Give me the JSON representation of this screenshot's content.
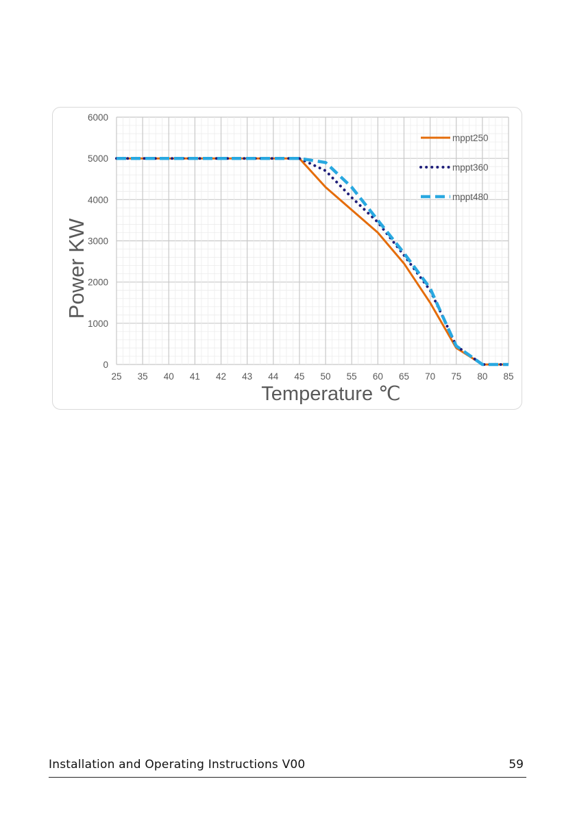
{
  "chart_data": {
    "type": "line",
    "xlabel": "Temperature ℃",
    "ylabel": "Power KW",
    "categories": [
      "25",
      "35",
      "40",
      "41",
      "42",
      "43",
      "44",
      "45",
      "50",
      "55",
      "60",
      "65",
      "70",
      "75",
      "80",
      "85"
    ],
    "y_ticks": [
      "0",
      "1000",
      "2000",
      "3000",
      "4000",
      "5000",
      "6000"
    ],
    "ylim": [
      0,
      6000
    ],
    "grid": true,
    "legend_position": "top-right",
    "series": [
      {
        "name": "mppt250",
        "color": "#e46c0a",
        "style": "solid",
        "points": [
          [
            25,
            5000
          ],
          [
            35,
            5000
          ],
          [
            40,
            5000
          ],
          [
            41,
            5000
          ],
          [
            42,
            5000
          ],
          [
            43,
            5000
          ],
          [
            44,
            5000
          ],
          [
            45,
            5000
          ],
          [
            50,
            4300
          ],
          [
            55,
            3750
          ],
          [
            60,
            3200
          ],
          [
            65,
            2450
          ],
          [
            70,
            1500
          ],
          [
            75,
            400
          ],
          [
            80,
            0
          ],
          [
            85,
            0
          ]
        ]
      },
      {
        "name": "mppt360",
        "color": "#1f1f7a",
        "style": "dotted",
        "points": [
          [
            25,
            5000
          ],
          [
            35,
            5000
          ],
          [
            40,
            5000
          ],
          [
            41,
            5000
          ],
          [
            42,
            5000
          ],
          [
            43,
            5000
          ],
          [
            44,
            5000
          ],
          [
            45,
            5000
          ],
          [
            50,
            4700
          ],
          [
            55,
            4050
          ],
          [
            60,
            3450
          ],
          [
            65,
            2650
          ],
          [
            70,
            1800
          ],
          [
            73,
            1000
          ],
          [
            75,
            450
          ],
          [
            80,
            0
          ],
          [
            85,
            0
          ]
        ]
      },
      {
        "name": "mppt480",
        "color": "#29a8e0",
        "style": "dashed",
        "points": [
          [
            25,
            5000
          ],
          [
            35,
            5000
          ],
          [
            40,
            5000
          ],
          [
            41,
            5000
          ],
          [
            42,
            5000
          ],
          [
            43,
            5000
          ],
          [
            44,
            5000
          ],
          [
            45,
            5000
          ],
          [
            50,
            4900
          ],
          [
            55,
            4300
          ],
          [
            60,
            3500
          ],
          [
            65,
            2700
          ],
          [
            70,
            1850
          ],
          [
            73,
            1000
          ],
          [
            75,
            450
          ],
          [
            80,
            0
          ],
          [
            85,
            0
          ]
        ]
      }
    ]
  },
  "footer": {
    "title": "Installation and Operating Instructions V00",
    "page_number": "59"
  }
}
